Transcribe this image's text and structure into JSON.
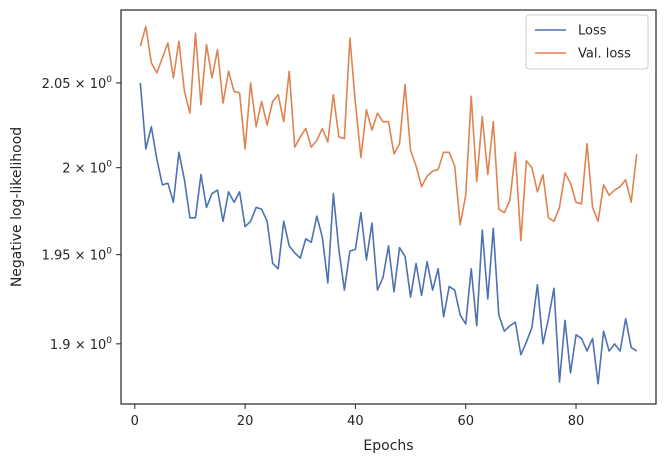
{
  "chart_data": {
    "type": "line",
    "xlabel": "Epochs",
    "ylabel": "Negative log-likelihood",
    "xlim": [
      -2.5,
      94.5
    ],
    "ylim": [
      1.867,
      2.094
    ],
    "y_scale": "log",
    "grid": false,
    "legend_position": "top-right",
    "x_ticks": [
      0,
      20,
      40,
      60,
      80
    ],
    "x_tick_labels": [
      "0",
      "20",
      "40",
      "60",
      "80"
    ],
    "y_ticks": [
      1.9,
      1.95,
      2.0,
      2.05
    ],
    "y_tick_labels": [
      {
        "base": "1.9 × 10",
        "exp": "0"
      },
      {
        "base": "1.95 × 10",
        "exp": "0"
      },
      {
        "base": "2 × 10",
        "exp": "0"
      },
      {
        "base": "2.05 × 10",
        "exp": "0"
      }
    ],
    "x": [
      1,
      2,
      3,
      4,
      5,
      6,
      7,
      8,
      9,
      10,
      11,
      12,
      13,
      14,
      15,
      16,
      17,
      18,
      19,
      20,
      21,
      22,
      23,
      24,
      25,
      26,
      27,
      28,
      29,
      30,
      31,
      32,
      33,
      34,
      35,
      36,
      37,
      38,
      39,
      40,
      41,
      42,
      43,
      44,
      45,
      46,
      47,
      48,
      49,
      50,
      51,
      52,
      53,
      54,
      55,
      56,
      57,
      58,
      59,
      60,
      61,
      62,
      63,
      64,
      65,
      66,
      67,
      68,
      69,
      70,
      71,
      72,
      73,
      74,
      75,
      76,
      77,
      78,
      79,
      80,
      81,
      82,
      83,
      84,
      85,
      86,
      87,
      88,
      89,
      90,
      91
    ],
    "series": [
      {
        "name": "Loss",
        "color": "#4c72b0",
        "values": [
          2.05,
          2.011,
          2.024,
          2.005,
          1.99,
          1.991,
          1.98,
          2.009,
          1.993,
          1.971,
          1.971,
          1.996,
          1.977,
          1.985,
          1.987,
          1.969,
          1.986,
          1.98,
          1.986,
          1.966,
          1.969,
          1.977,
          1.976,
          1.969,
          1.945,
          1.942,
          1.969,
          1.955,
          1.951,
          1.948,
          1.959,
          1.957,
          1.972,
          1.96,
          1.934,
          1.985,
          1.953,
          1.93,
          1.952,
          1.953,
          1.974,
          1.947,
          1.968,
          1.93,
          1.937,
          1.955,
          1.929,
          1.954,
          1.949,
          1.926,
          1.945,
          1.927,
          1.946,
          1.93,
          1.942,
          1.915,
          1.932,
          1.93,
          1.916,
          1.911,
          1.942,
          1.91,
          1.964,
          1.925,
          1.965,
          1.916,
          1.907,
          1.91,
          1.912,
          1.894,
          1.901,
          1.909,
          1.933,
          1.9,
          1.914,
          1.931,
          1.879,
          1.913,
          1.884,
          1.905,
          1.903,
          1.896,
          1.903,
          1.878,
          1.907,
          1.896,
          1.9,
          1.896,
          1.914,
          1.898,
          1.896
        ]
      },
      {
        "name": "Val. loss",
        "color": "#dd8452",
        "values": [
          2.072,
          2.084,
          2.062,
          2.056,
          2.065,
          2.074,
          2.053,
          2.075,
          2.045,
          2.032,
          2.08,
          2.037,
          2.073,
          2.053,
          2.07,
          2.038,
          2.057,
          2.045,
          2.044,
          2.011,
          2.05,
          2.024,
          2.039,
          2.025,
          2.039,
          2.043,
          2.027,
          2.057,
          2.012,
          2.018,
          2.023,
          2.012,
          2.016,
          2.023,
          2.015,
          2.043,
          2.018,
          2.017,
          2.077,
          2.038,
          2.006,
          2.034,
          2.022,
          2.032,
          2.027,
          2.027,
          2.008,
          2.014,
          2.049,
          2.01,
          2.001,
          1.989,
          1.995,
          1.998,
          1.999,
          2.009,
          2.009,
          2.001,
          1.967,
          1.984,
          2.042,
          1.992,
          2.03,
          1.996,
          2.027,
          1.976,
          1.974,
          1.981,
          2.009,
          1.958,
          2.004,
          2.0,
          1.986,
          1.996,
          1.971,
          1.969,
          1.977,
          1.997,
          1.991,
          1.98,
          1.979,
          2.014,
          1.977,
          1.969,
          1.99,
          1.984,
          1.987,
          1.989,
          1.993,
          1.98,
          2.008
        ]
      }
    ]
  }
}
